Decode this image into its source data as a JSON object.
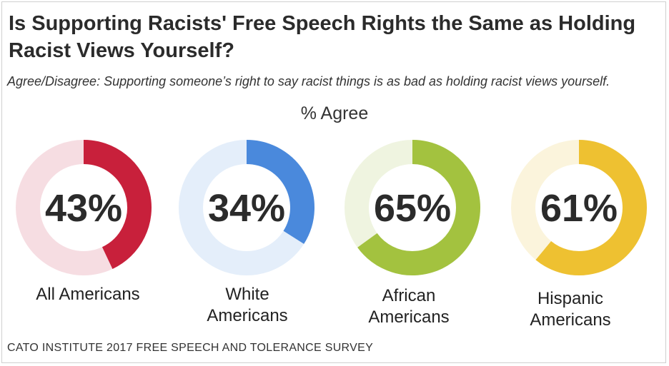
{
  "title": "Is Supporting Racists' Free Speech Rights the Same as Holding Racist Views Yourself?",
  "subtitle": "Agree/Disagree: Supporting someone’s right to say racist things is as bad as holding racist views yourself.",
  "metric_label": "% Agree",
  "source": "CATO INSTITUTE 2017 FREE SPEECH AND TOLERANCE SURVEY",
  "chart_data": {
    "type": "pie",
    "variant": "donut",
    "title": "Is Supporting Racists' Free Speech Rights the Same as Holding Racist Views Yourself?",
    "subtitle": "Agree/Disagree: Supporting someone’s right to say racist things is as bad as holding racist views yourself.",
    "measure": "% Agree",
    "categories": [
      {
        "label_lines": [
          "All Americans"
        ],
        "value": 43,
        "value_label": "43%",
        "color": "#c8203b",
        "track_color": "#f6dde2"
      },
      {
        "label_lines": [
          "White",
          "Americans"
        ],
        "value": 34,
        "value_label": "34%",
        "color": "#4a89dc",
        "track_color": "#e4eefa"
      },
      {
        "label_lines": [
          "African",
          "Americans"
        ],
        "value": 65,
        "value_label": "65%",
        "color": "#a3c23f",
        "track_color": "#eff4e0"
      },
      {
        "label_lines": [
          "Hispanic",
          "Americans"
        ],
        "value": 61,
        "value_label": "61%",
        "color": "#eec131",
        "track_color": "#fbf4dc"
      }
    ]
  }
}
